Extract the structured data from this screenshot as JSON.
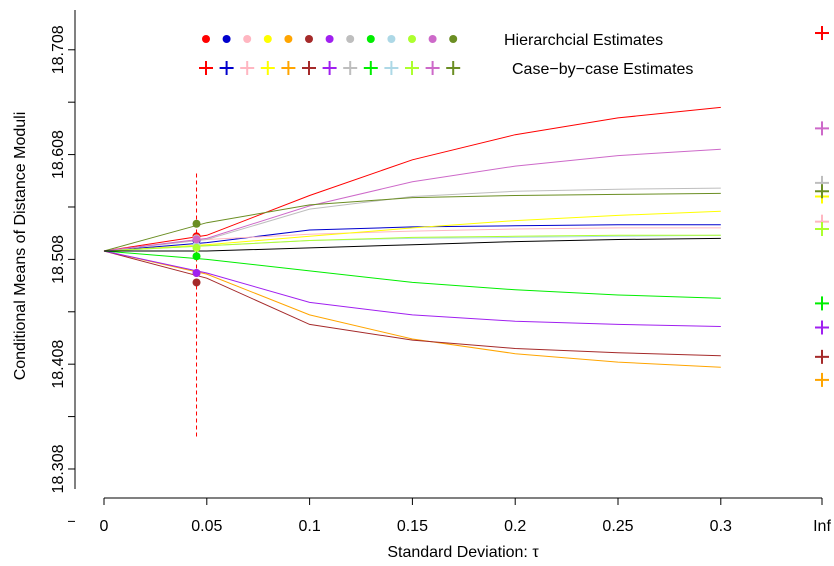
{
  "chart_data": {
    "type": "line",
    "xlabel": "Standard Deviation: τ",
    "ylabel": "Conditional Means of Distance Moduli",
    "x_ticks": [
      0,
      0.05,
      0.1,
      0.15,
      0.2,
      0.25,
      0.3
    ],
    "x_tick_labels": [
      "0",
      "0.05",
      "0.1",
      "0.15",
      "0.2",
      "0.25",
      "0.3"
    ],
    "x_inf_label": "Inf",
    "y_ticks": [
      18.308,
      18.408,
      18.508,
      18.608,
      18.708
    ],
    "y_tick_labels": [
      "18.308",
      "18.408",
      "18.508",
      "18.608",
      "18.708"
    ],
    "ylim": [
      18.28,
      18.735
    ],
    "x": [
      0,
      0.05,
      0.1,
      0.15,
      0.2,
      0.25,
      0.3
    ],
    "hierarchical_tau": 0.045,
    "vline": {
      "x": 0.045,
      "y_range": [
        18.338,
        18.59
      ]
    },
    "legend": {
      "hierarchical_label": "Hierarchcial Estimates",
      "case_label": "Case−by−case Estimates",
      "position": "top"
    },
    "series": [
      {
        "color": "#ff0000",
        "values": [
          18.516,
          18.531,
          18.569,
          18.603,
          18.627,
          18.643,
          18.653
        ],
        "hier": 18.53,
        "inf": 18.724
      },
      {
        "color": "#0000cd",
        "values": [
          18.516,
          18.524,
          18.536,
          18.539,
          18.54,
          18.541,
          18.541
        ],
        "hier": 18.526,
        "inf": null
      },
      {
        "color": "#ffb6c1",
        "values": [
          18.516,
          18.527,
          18.532,
          18.535,
          18.537,
          18.538,
          18.538
        ],
        "hier": 18.528,
        "inf": 18.544
      },
      {
        "color": "#ffff00",
        "values": [
          18.516,
          18.522,
          18.53,
          18.538,
          18.545,
          18.55,
          18.554
        ],
        "hier": 18.521,
        "inf": 18.568
      },
      {
        "color": "#ffa500",
        "values": [
          18.516,
          18.494,
          18.455,
          18.432,
          18.418,
          18.41,
          18.405
        ],
        "hier": 18.495,
        "inf": 18.393
      },
      {
        "color": "#a52a2a",
        "values": [
          18.516,
          18.49,
          18.446,
          18.431,
          18.423,
          18.419,
          18.416
        ],
        "hier": 18.486,
        "inf": 18.415
      },
      {
        "color": "#a020f0",
        "values": [
          18.516,
          18.495,
          18.467,
          18.455,
          18.449,
          18.446,
          18.444
        ],
        "hier": 18.495,
        "inf": 18.443
      },
      {
        "color": "#bebebe",
        "values": [
          18.516,
          18.527,
          18.556,
          18.568,
          18.573,
          18.575,
          18.576
        ],
        "hier": 18.528,
        "inf": 18.581
      },
      {
        "color": "#00ee00",
        "values": [
          18.516,
          18.508,
          18.497,
          18.486,
          18.479,
          18.474,
          18.471
        ],
        "hier": 18.511,
        "inf": 18.466
      },
      {
        "color": "#add8e6",
        "values": [
          18.516,
          18.521,
          18.526,
          18.528,
          18.529,
          18.53,
          18.531
        ],
        "hier": 18.521,
        "inf": null
      },
      {
        "color": "#adff2f",
        "values": [
          18.516,
          18.521,
          18.526,
          18.529,
          18.53,
          18.531,
          18.531
        ],
        "hier": 18.519,
        "inf": 18.537
      },
      {
        "color": "#cd69c9",
        "values": [
          18.516,
          18.528,
          18.559,
          18.582,
          18.597,
          18.607,
          18.613
        ],
        "hier": 18.527,
        "inf": 18.633
      },
      {
        "color": "#6b8e23",
        "values": [
          18.516,
          18.543,
          18.56,
          18.567,
          18.569,
          18.57,
          18.571
        ],
        "hier": 18.542,
        "inf": 18.573
      },
      {
        "color": "#000000",
        "values": [
          18.516,
          18.516,
          18.519,
          18.522,
          18.525,
          18.527,
          18.528
        ],
        "hier": null,
        "inf": null
      }
    ]
  }
}
